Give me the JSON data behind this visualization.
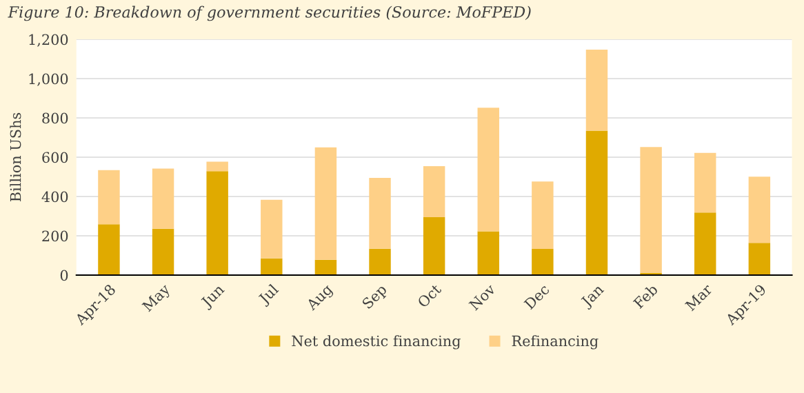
{
  "chart_data": {
    "type": "bar",
    "title": "Figure 10: Breakdown of government securities (Source: MoFPED)",
    "ylabel": "Billion UShs",
    "categories": [
      "Apr-18",
      "May",
      "Jun",
      "Jul",
      "Aug",
      "Sep",
      "Oct",
      "Nov",
      "Dec",
      "Jan",
      "Feb",
      "Mar",
      "Apr-19"
    ],
    "stacked": true,
    "series": [
      {
        "name": "Net domestic financing",
        "color": "#e0aa00",
        "values": [
          259,
          236,
          529,
          85,
          78,
          134,
          295,
          223,
          133,
          735,
          12,
          318,
          164
        ]
      },
      {
        "name": "Refinancing",
        "color": "#fed087",
        "values": [
          275,
          306,
          48,
          298,
          572,
          361,
          259,
          629,
          343,
          412,
          640,
          304,
          337
        ]
      }
    ],
    "ylim": [
      0,
      1200
    ],
    "yticks": [
      0,
      200,
      400,
      600,
      800,
      {
        "value": 1000,
        "label": "1,000"
      },
      {
        "value": 1200,
        "label": "1,200"
      }
    ],
    "grid": "y",
    "legend": "bottom"
  }
}
